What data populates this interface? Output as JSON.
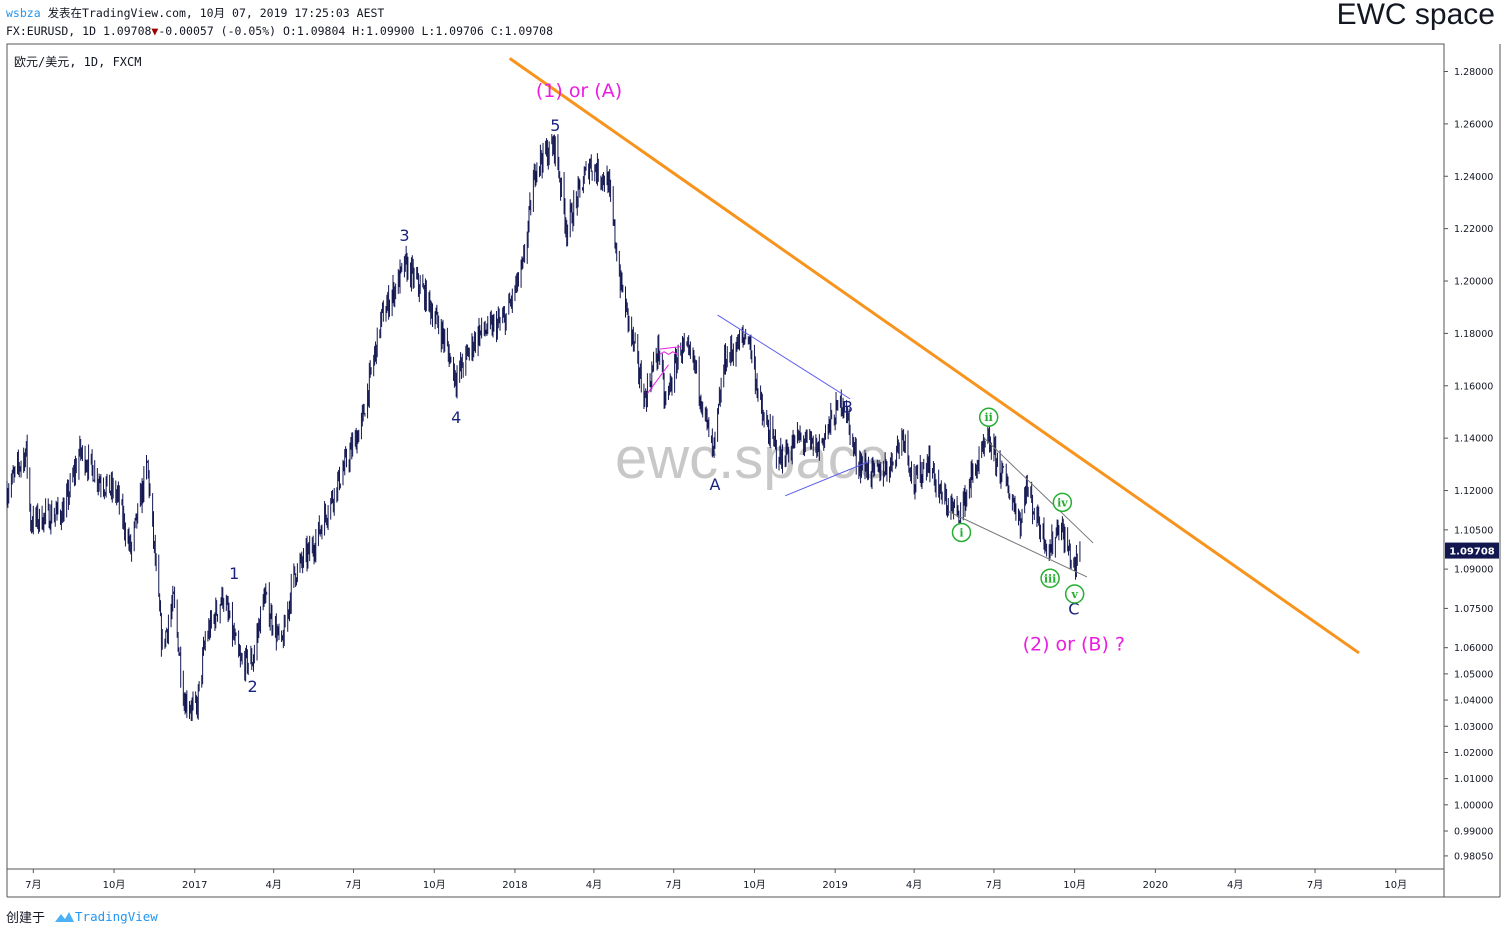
{
  "header": {
    "user": "wsbza",
    "published": "发表在TradingView.com, 10月 07, 2019 17:25:03 AEST",
    "symbol": "FX:EURUSD, 1D",
    "last": "1.09708",
    "change_arrow": "▼",
    "change": "-0.00057 (-0.05%)",
    "ohlc": "O:1.09804 H:1.09900 L:1.09706 C:1.09708",
    "brand": "EWC space"
  },
  "legend": {
    "title": "欧元/美元, 1D, FXCM"
  },
  "watermark": "ewc.space",
  "footer": {
    "created_by": "创建于",
    "logo_text": "TradingView",
    "logo_icon": "tradingview-cloud-icon"
  },
  "colors": {
    "candle": "#131750",
    "trend": "#f7941d",
    "wave_blue": "#1a237e",
    "wave_magenta": "#e91ee0",
    "wave_green": "#25ae31",
    "channel_blue": "#5b5cf0",
    "wedge_gray": "#777777"
  },
  "chart_data": {
    "type": "candlestick",
    "symbol": "EURUSD",
    "timeframe": "1D",
    "last_price": 1.09708,
    "ylim": [
      0.9755,
      1.2905
    ],
    "x_start": "2016-06-01",
    "x_end": "2020-11-25",
    "y_ticks": [
      "1.28000",
      "1.26000",
      "1.24000",
      "1.22000",
      "1.20000",
      "1.18000",
      "1.16000",
      "1.14000",
      "1.12000",
      "1.10500",
      "1.09000",
      "1.07500",
      "1.06000",
      "1.05000",
      "1.04000",
      "1.03000",
      "1.02000",
      "1.01000",
      "1.00000",
      "0.99000",
      "0.98050"
    ],
    "x_ticks": [
      {
        "label": "7月",
        "date": "2016-07-01"
      },
      {
        "label": "10月",
        "date": "2016-10-01"
      },
      {
        "label": "2017",
        "date": "2017-01-01"
      },
      {
        "label": "4月",
        "date": "2017-04-01"
      },
      {
        "label": "7月",
        "date": "2017-07-01"
      },
      {
        "label": "10月",
        "date": "2017-10-01"
      },
      {
        "label": "2018",
        "date": "2018-01-01"
      },
      {
        "label": "4月",
        "date": "2018-04-01"
      },
      {
        "label": "7月",
        "date": "2018-07-01"
      },
      {
        "label": "10月",
        "date": "2018-10-01"
      },
      {
        "label": "2019",
        "date": "2019-01-01"
      },
      {
        "label": "4月",
        "date": "2019-04-01"
      },
      {
        "label": "7月",
        "date": "2019-07-01"
      },
      {
        "label": "10月",
        "date": "2019-10-01"
      },
      {
        "label": "2020",
        "date": "2020-01-01"
      },
      {
        "label": "4月",
        "date": "2020-04-01"
      },
      {
        "label": "7月",
        "date": "2020-07-01"
      },
      {
        "label": "10月",
        "date": "2020-10-01"
      }
    ],
    "price_path": [
      [
        "2016-06-01",
        1.12
      ],
      [
        "2016-06-23",
        1.135
      ],
      [
        "2016-06-28",
        1.108
      ],
      [
        "2016-07-15",
        1.11
      ],
      [
        "2016-08-05",
        1.112
      ],
      [
        "2016-08-23",
        1.135
      ],
      [
        "2016-09-15",
        1.124
      ],
      [
        "2016-10-05",
        1.118
      ],
      [
        "2016-10-20",
        1.097
      ],
      [
        "2016-11-08",
        1.13
      ],
      [
        "2016-11-25",
        1.06
      ],
      [
        "2016-12-08",
        1.078
      ],
      [
        "2016-12-20",
        1.04
      ],
      [
        "2017-01-03",
        1.036
      ],
      [
        "2017-01-13",
        1.063
      ],
      [
        "2017-02-02",
        1.08
      ],
      [
        "2017-02-22",
        1.054
      ],
      [
        "2017-03-08",
        1.055
      ],
      [
        "2017-03-21",
        1.08
      ],
      [
        "2017-04-10",
        1.06
      ],
      [
        "2017-04-24",
        1.088
      ],
      [
        "2017-05-15",
        1.098
      ],
      [
        "2017-06-12",
        1.122
      ],
      [
        "2017-07-10",
        1.145
      ],
      [
        "2017-08-02",
        1.186
      ],
      [
        "2017-08-29",
        1.206
      ],
      [
        "2017-09-20",
        1.195
      ],
      [
        "2017-10-10",
        1.18
      ],
      [
        "2017-10-26",
        1.163
      ],
      [
        "2017-11-20",
        1.18
      ],
      [
        "2017-12-05",
        1.182
      ],
      [
        "2017-12-20",
        1.185
      ],
      [
        "2018-01-10",
        1.205
      ],
      [
        "2018-01-25",
        1.245
      ],
      [
        "2018-02-16",
        1.252
      ],
      [
        "2018-03-01",
        1.22
      ],
      [
        "2018-03-27",
        1.245
      ],
      [
        "2018-04-17",
        1.238
      ],
      [
        "2018-05-01",
        1.2
      ],
      [
        "2018-05-29",
        1.155
      ],
      [
        "2018-06-14",
        1.175
      ],
      [
        "2018-06-21",
        1.153
      ],
      [
        "2018-07-09",
        1.175
      ],
      [
        "2018-07-25",
        1.168
      ],
      [
        "2018-08-15",
        1.133
      ],
      [
        "2018-08-28",
        1.17
      ],
      [
        "2018-09-24",
        1.18
      ],
      [
        "2018-10-10",
        1.148
      ],
      [
        "2018-10-31",
        1.132
      ],
      [
        "2018-11-20",
        1.14
      ],
      [
        "2018-12-12",
        1.136
      ],
      [
        "2019-01-10",
        1.155
      ],
      [
        "2019-01-25",
        1.132
      ],
      [
        "2019-02-15",
        1.126
      ],
      [
        "2019-03-05",
        1.13
      ],
      [
        "2019-03-20",
        1.142
      ],
      [
        "2019-04-01",
        1.122
      ],
      [
        "2019-04-17",
        1.132
      ],
      [
        "2019-05-01",
        1.118
      ],
      [
        "2019-05-23",
        1.11
      ],
      [
        "2019-06-05",
        1.125
      ],
      [
        "2019-06-25",
        1.139
      ],
      [
        "2019-07-12",
        1.125
      ],
      [
        "2019-08-01",
        1.108
      ],
      [
        "2019-08-06",
        1.122
      ],
      [
        "2019-08-21",
        1.108
      ],
      [
        "2019-09-03",
        1.097
      ],
      [
        "2019-09-13",
        1.108
      ],
      [
        "2019-09-26",
        1.095
      ],
      [
        "2019-10-01",
        1.09
      ],
      [
        "2019-10-07",
        1.097
      ]
    ],
    "trendline": [
      [
        "2017-12-26",
        1.285
      ],
      [
        "2020-08-20",
        1.058
      ]
    ],
    "channel_lines": [
      [
        [
          "2018-08-20",
          1.187
        ],
        [
          "2019-01-18",
          1.155
        ]
      ],
      [
        [
          "2018-11-05",
          1.118
        ],
        [
          "2019-02-08",
          1.131
        ]
      ]
    ],
    "wedge_lines": [
      [
        [
          "2019-06-20",
          1.14
        ],
        [
          "2019-10-22",
          1.1
        ]
      ],
      [
        [
          "2019-05-10",
          1.112
        ],
        [
          "2019-10-15",
          1.087
        ]
      ]
    ],
    "magenta_marks": [
      [
        [
          "2018-06-15",
          1.174
        ],
        [
          "2018-07-10",
          1.175
        ]
      ],
      [
        [
          "2018-06-15",
          1.172
        ],
        [
          "2018-06-20",
          1.173
        ],
        [
          "2018-06-25",
          1.172
        ],
        [
          "2018-06-30",
          1.173
        ],
        [
          "2018-07-05",
          1.172
        ]
      ],
      [
        [
          "2018-06-01",
          1.157
        ],
        [
          "2018-06-25",
          1.168
        ]
      ]
    ],
    "wave_labels": [
      {
        "text": "1",
        "date": "2017-02-15",
        "price": 1.0885,
        "style": "blue"
      },
      {
        "text": "2",
        "date": "2017-03-08",
        "price": 1.0453,
        "style": "blue"
      },
      {
        "text": "3",
        "date": "2017-08-28",
        "price": 1.2175,
        "style": "blue"
      },
      {
        "text": "4",
        "date": "2017-10-26",
        "price": 1.148,
        "style": "blue"
      },
      {
        "text": "5",
        "date": "2018-02-16",
        "price": 1.2595,
        "style": "blue"
      },
      {
        "text": "A",
        "date": "2018-08-17",
        "price": 1.1225,
        "style": "blue"
      },
      {
        "text": "B",
        "date": "2019-01-15",
        "price": 1.152,
        "style": "blue"
      },
      {
        "text": "C",
        "date": "2019-09-30",
        "price": 1.0749,
        "style": "blue"
      },
      {
        "text": "(1) or (A)",
        "date": "2018-03-15",
        "price": 1.2725,
        "style": "magenta"
      },
      {
        "text": "(2) or (B) ?",
        "date": "2019-09-30",
        "price": 1.0612,
        "style": "magenta"
      },
      {
        "text": "i",
        "date": "2019-05-25",
        "price": 1.104,
        "style": "green"
      },
      {
        "text": "ii",
        "date": "2019-06-25",
        "price": 1.148,
        "style": "green"
      },
      {
        "text": "iii",
        "date": "2019-09-03",
        "price": 1.0865,
        "style": "green"
      },
      {
        "text": "iv",
        "date": "2019-09-17",
        "price": 1.1155,
        "style": "green"
      },
      {
        "text": "v",
        "date": "2019-10-01",
        "price": 1.0805,
        "style": "green"
      }
    ]
  }
}
